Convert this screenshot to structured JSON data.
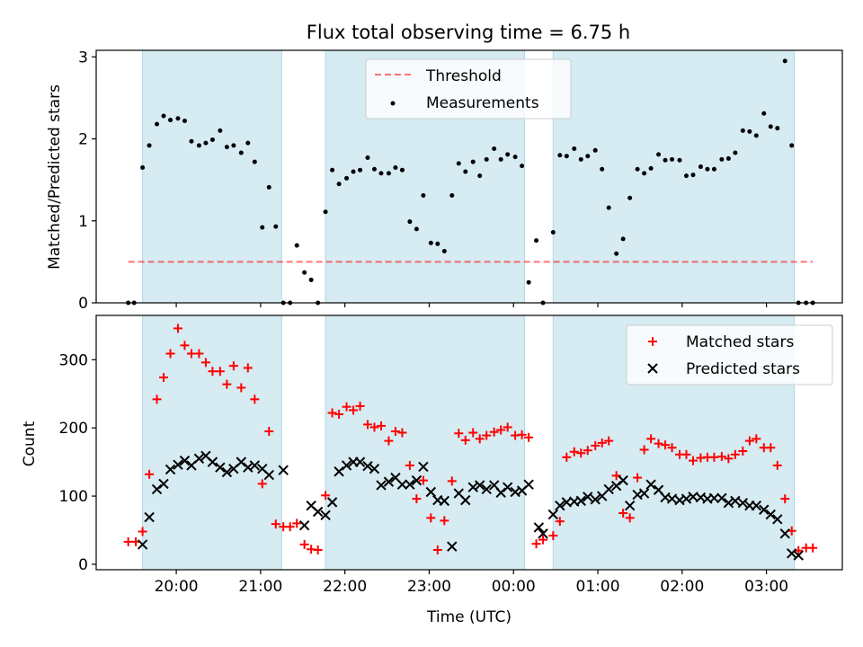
{
  "figure": {
    "title": "Flux total observing time = 6.75 h",
    "colors": {
      "band": "#add8e6",
      "threshold": "#ff0000",
      "measurement": "#000000",
      "matched": "#ff0000",
      "predicted": "#000000"
    }
  },
  "chart_data": [
    {
      "type": "scatter",
      "ylabel": "Matched/Predicted stars",
      "xlim": [
        19.05,
        27.9
      ],
      "ylim": [
        0,
        3.08
      ],
      "yticks": [
        0,
        1,
        2,
        3
      ],
      "grid": false,
      "legend_position": "top-center",
      "shaded_intervals": [
        [
          19.6,
          21.25
        ],
        [
          21.77,
          24.13
        ],
        [
          24.47,
          27.33
        ]
      ],
      "threshold": {
        "name": "Threshold",
        "value": 0.5,
        "x_range": [
          19.43,
          27.55
        ],
        "style": "dashed"
      },
      "series": [
        {
          "name": "Measurements",
          "marker": "dot",
          "x": [
            19.43,
            19.5,
            19.6,
            19.68,
            19.77,
            19.85,
            19.93,
            20.02,
            20.1,
            20.18,
            20.27,
            20.35,
            20.43,
            20.52,
            20.6,
            20.68,
            20.77,
            20.85,
            20.93,
            21.02,
            21.1,
            21.18,
            21.27,
            21.35,
            21.43,
            21.52,
            21.6,
            21.68,
            21.77,
            21.85,
            21.93,
            22.02,
            22.1,
            22.18,
            22.27,
            22.35,
            22.43,
            22.52,
            22.6,
            22.68,
            22.77,
            22.85,
            22.93,
            23.02,
            23.1,
            23.18,
            23.27,
            23.35,
            23.43,
            23.52,
            23.6,
            23.68,
            23.77,
            23.85,
            23.93,
            24.02,
            24.1,
            24.18,
            24.27,
            24.35,
            24.47,
            24.55,
            24.63,
            24.72,
            24.8,
            24.88,
            24.97,
            25.05,
            25.13,
            25.22,
            25.3,
            25.38,
            25.47,
            25.55,
            25.63,
            25.72,
            25.8,
            25.88,
            25.97,
            26.05,
            26.13,
            26.22,
            26.3,
            26.38,
            26.47,
            26.55,
            26.63,
            26.72,
            26.8,
            26.88,
            26.97,
            27.05,
            27.13,
            27.22,
            27.3,
            27.38,
            27.47,
            27.55
          ],
          "y": [
            0.0,
            0.0,
            1.65,
            1.92,
            2.18,
            2.28,
            2.23,
            2.25,
            2.22,
            1.97,
            1.92,
            1.95,
            1.99,
            2.1,
            1.9,
            1.92,
            1.83,
            1.95,
            1.72,
            0.92,
            1.41,
            0.93,
            0.0,
            0.0,
            0.7,
            0.37,
            0.28,
            0.0,
            1.11,
            1.62,
            1.45,
            1.52,
            1.6,
            1.62,
            1.77,
            1.63,
            1.58,
            1.58,
            1.65,
            1.62,
            0.99,
            0.9,
            1.31,
            0.73,
            0.72,
            0.63,
            1.31,
            1.7,
            1.6,
            1.72,
            1.55,
            1.75,
            1.88,
            1.75,
            1.81,
            1.78,
            1.67,
            0.25,
            0.76,
            0.0,
            0.86,
            1.8,
            1.79,
            1.88,
            1.75,
            1.79,
            1.86,
            1.63,
            1.16,
            0.6,
            0.78,
            1.28,
            1.63,
            1.58,
            1.64,
            1.81,
            1.74,
            1.75,
            1.74,
            1.55,
            1.56,
            1.66,
            1.63,
            1.63,
            1.75,
            1.76,
            1.83,
            2.1,
            2.09,
            2.04,
            2.31,
            2.15,
            2.13,
            2.95,
            1.92,
            0.0,
            0.0,
            0.0
          ]
        }
      ]
    },
    {
      "type": "scatter",
      "xlabel": "Time (UTC)",
      "ylabel": "Count",
      "xlim": [
        19.05,
        27.9
      ],
      "ylim": [
        -8,
        365
      ],
      "yticks": [
        0,
        100,
        200,
        300
      ],
      "xticks": [
        20,
        21,
        22,
        23,
        24,
        25,
        26,
        27
      ],
      "xticklabels": [
        "20:00",
        "21:00",
        "22:00",
        "23:00",
        "00:00",
        "01:00",
        "02:00",
        "03:00"
      ],
      "grid": false,
      "legend_position": "top-right",
      "shaded_intervals": [
        [
          19.6,
          21.25
        ],
        [
          21.77,
          24.13
        ],
        [
          24.47,
          27.33
        ]
      ],
      "series": [
        {
          "name": "Matched stars",
          "marker": "plus",
          "x": [
            19.43,
            19.52,
            19.6,
            19.68,
            19.77,
            19.85,
            19.93,
            20.02,
            20.1,
            20.18,
            20.27,
            20.35,
            20.43,
            20.52,
            20.6,
            20.68,
            20.77,
            20.85,
            20.93,
            21.02,
            21.1,
            21.18,
            21.27,
            21.35,
            21.43,
            21.52,
            21.6,
            21.68,
            21.77,
            21.85,
            21.93,
            22.02,
            22.1,
            22.18,
            22.27,
            22.35,
            22.43,
            22.52,
            22.6,
            22.68,
            22.77,
            22.85,
            22.93,
            23.02,
            23.1,
            23.18,
            23.27,
            23.35,
            23.43,
            23.52,
            23.6,
            23.68,
            23.77,
            23.85,
            23.93,
            24.02,
            24.1,
            24.18,
            24.27,
            24.35,
            24.47,
            24.55,
            24.63,
            24.72,
            24.8,
            24.88,
            24.97,
            25.05,
            25.13,
            25.22,
            25.3,
            25.38,
            25.47,
            25.55,
            25.63,
            25.72,
            25.8,
            25.88,
            25.97,
            26.05,
            26.13,
            26.22,
            26.3,
            26.38,
            26.47,
            26.55,
            26.63,
            26.72,
            26.8,
            26.88,
            26.97,
            27.05,
            27.13,
            27.22,
            27.3,
            27.38,
            27.47,
            27.55
          ],
          "y": [
            33,
            33,
            48,
            132,
            242,
            274,
            309,
            346,
            321,
            309,
            309,
            296,
            283,
            283,
            264,
            291,
            259,
            288,
            242,
            118,
            195,
            59,
            55,
            55,
            60,
            29,
            22,
            21,
            101,
            222,
            220,
            231,
            226,
            232,
            205,
            201,
            203,
            181,
            195,
            193,
            145,
            96,
            123,
            68,
            21,
            64,
            122,
            192,
            182,
            193,
            184,
            189,
            194,
            197,
            201,
            189,
            190,
            186,
            30,
            36,
            42,
            63,
            157,
            165,
            163,
            167,
            174,
            178,
            181,
            130,
            75,
            68,
            127,
            168,
            184,
            177,
            175,
            171,
            161,
            161,
            152,
            156,
            157,
            157,
            158,
            155,
            161,
            166,
            181,
            184,
            171,
            171,
            145,
            96,
            49,
            20,
            24,
            24
          ]
        },
        {
          "name": "Predicted stars",
          "marker": "cross",
          "x": [
            19.6,
            19.68,
            19.77,
            19.85,
            19.93,
            20.02,
            20.1,
            20.18,
            20.27,
            20.35,
            20.43,
            20.52,
            20.6,
            20.68,
            20.77,
            20.85,
            20.93,
            21.02,
            21.1,
            21.27,
            21.52,
            21.6,
            21.68,
            21.77,
            21.85,
            21.93,
            22.02,
            22.1,
            22.18,
            22.27,
            22.35,
            22.43,
            22.52,
            22.6,
            22.68,
            22.77,
            22.85,
            22.93,
            23.02,
            23.1,
            23.18,
            23.27,
            23.35,
            23.43,
            23.52,
            23.6,
            23.68,
            23.77,
            23.85,
            23.93,
            24.02,
            24.1,
            24.18,
            24.3,
            24.35,
            24.47,
            24.55,
            24.63,
            24.72,
            24.8,
            24.88,
            24.97,
            25.05,
            25.13,
            25.22,
            25.3,
            25.38,
            25.47,
            25.55,
            25.63,
            25.72,
            25.8,
            25.88,
            25.97,
            26.05,
            26.13,
            26.22,
            26.3,
            26.38,
            26.47,
            26.55,
            26.63,
            26.72,
            26.8,
            26.88,
            26.97,
            27.05,
            27.13,
            27.22,
            27.3,
            27.38
          ],
          "y": [
            29,
            69,
            110,
            118,
            139,
            146,
            152,
            145,
            155,
            159,
            150,
            142,
            135,
            140,
            150,
            142,
            145,
            140,
            131,
            138,
            57,
            86,
            77,
            72,
            91,
            136,
            145,
            150,
            150,
            144,
            140,
            116,
            121,
            127,
            117,
            117,
            123,
            143,
            106,
            94,
            93,
            26,
            104,
            94,
            113,
            116,
            110,
            116,
            105,
            113,
            106,
            108,
            117,
            54,
            45,
            73,
            86,
            91,
            92,
            93,
            99,
            95,
            100,
            110,
            115,
            123,
            86,
            102,
            104,
            117,
            109,
            98,
            96,
            94,
            96,
            99,
            98,
            96,
            97,
            97,
            90,
            93,
            90,
            86,
            86,
            80,
            73,
            66,
            45,
            16,
            13
          ]
        }
      ]
    }
  ]
}
